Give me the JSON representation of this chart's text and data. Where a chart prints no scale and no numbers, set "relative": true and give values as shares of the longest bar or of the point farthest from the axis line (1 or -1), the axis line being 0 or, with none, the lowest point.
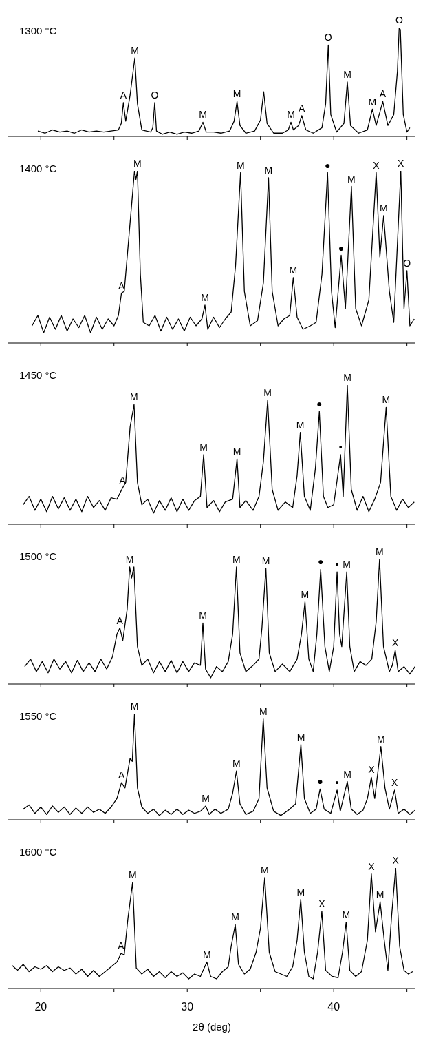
{
  "chart_data": [
    {
      "type": "line",
      "title": "1300 °C",
      "relative": true,
      "color": "#000000",
      "tick_labels": false,
      "xlim": [
        17.78,
        45.58
      ],
      "xticks": [
        20,
        25,
        30,
        35,
        40,
        45
      ],
      "x": [
        19.8,
        20.3,
        20.8,
        21.3,
        21.8,
        22.3,
        22.8,
        23.3,
        23.8,
        24.3,
        24.8,
        25.3,
        25.5,
        25.64,
        25.8,
        26.1,
        26.42,
        26.6,
        26.9,
        27.5,
        27.65,
        27.78,
        27.9,
        28.3,
        28.8,
        29.3,
        29.8,
        30.3,
        30.8,
        31.07,
        31.3,
        31.8,
        32.3,
        32.9,
        33.2,
        33.4,
        33.6,
        34.0,
        34.6,
        35.0,
        35.22,
        35.45,
        35.9,
        36.5,
        36.9,
        37.08,
        37.25,
        37.6,
        37.82,
        38.1,
        38.6,
        39.2,
        39.45,
        39.63,
        39.8,
        40.2,
        40.7,
        40.93,
        41.15,
        41.7,
        42.3,
        42.64,
        42.9,
        43.35,
        43.7,
        44.1,
        44.35,
        44.47,
        44.55,
        44.75,
        45.0,
        45.2
      ],
      "values": [
        0.05,
        0.03,
        0.06,
        0.04,
        0.05,
        0.03,
        0.06,
        0.04,
        0.05,
        0.04,
        0.05,
        0.06,
        0.12,
        0.31,
        0.14,
        0.38,
        0.72,
        0.3,
        0.06,
        0.04,
        0.08,
        0.31,
        0.05,
        0.02,
        0.04,
        0.02,
        0.04,
        0.03,
        0.05,
        0.13,
        0.04,
        0.04,
        0.03,
        0.05,
        0.14,
        0.32,
        0.1,
        0.03,
        0.05,
        0.15,
        0.41,
        0.12,
        0.03,
        0.03,
        0.06,
        0.13,
        0.06,
        0.1,
        0.19,
        0.06,
        0.03,
        0.08,
        0.3,
        0.84,
        0.2,
        0.04,
        0.12,
        0.5,
        0.1,
        0.03,
        0.06,
        0.25,
        0.1,
        0.32,
        0.1,
        0.2,
        0.6,
        1.0,
        0.98,
        0.2,
        0.04,
        0.08
      ],
      "annotations": [
        {
          "text": "A",
          "x": 25.64,
          "y": 0.31
        },
        {
          "text": "M",
          "x": 26.42,
          "y": 0.72
        },
        {
          "text": "O",
          "x": 27.78,
          "y": 0.31
        },
        {
          "text": "M",
          "x": 31.07,
          "y": 0.13
        },
        {
          "text": "M",
          "x": 33.4,
          "y": 0.32
        },
        {
          "text": "M",
          "x": 37.08,
          "y": 0.13
        },
        {
          "text": "A",
          "x": 37.82,
          "y": 0.19
        },
        {
          "text": "O",
          "x": 39.63,
          "y": 0.84
        },
        {
          "text": "M",
          "x": 40.93,
          "y": 0.5
        },
        {
          "text": "M",
          "x": 42.64,
          "y": 0.25
        },
        {
          "text": "A",
          "x": 43.35,
          "y": 0.32
        },
        {
          "text": "O",
          "x": 44.47,
          "y": 1.0
        }
      ]
    },
    {
      "type": "line",
      "title": "1400 °C",
      "relative": true,
      "color": "#000000",
      "tick_labels": false,
      "xlim": [
        17.78,
        45.58
      ],
      "xticks": [
        20,
        25,
        30,
        35,
        40,
        45
      ],
      "x": [
        19.4,
        19.8,
        20.2,
        20.6,
        21.0,
        21.4,
        21.8,
        22.2,
        22.6,
        23.0,
        23.4,
        23.8,
        24.2,
        24.6,
        25.0,
        25.3,
        25.51,
        25.7,
        26.0,
        26.4,
        26.5,
        26.6,
        26.8,
        27.0,
        27.4,
        27.8,
        28.2,
        28.6,
        29.0,
        29.4,
        29.8,
        30.2,
        30.6,
        31.0,
        31.21,
        31.4,
        31.8,
        32.2,
        32.6,
        33.0,
        33.3,
        33.64,
        33.9,
        34.3,
        34.8,
        35.2,
        35.55,
        35.8,
        36.2,
        36.6,
        37.0,
        37.24,
        37.5,
        37.9,
        38.4,
        38.8,
        39.2,
        39.58,
        39.85,
        40.1,
        40.51,
        40.8,
        41.21,
        41.5,
        41.9,
        42.4,
        42.9,
        43.15,
        43.41,
        43.8,
        44.1,
        44.58,
        44.8,
        45.0,
        45.2,
        45.5
      ],
      "values": [
        0.1,
        0.16,
        0.06,
        0.15,
        0.08,
        0.16,
        0.07,
        0.14,
        0.09,
        0.16,
        0.06,
        0.15,
        0.08,
        0.14,
        0.1,
        0.16,
        0.29,
        0.3,
        0.6,
        1.0,
        0.95,
        1.0,
        0.4,
        0.12,
        0.1,
        0.16,
        0.07,
        0.15,
        0.08,
        0.14,
        0.07,
        0.15,
        0.1,
        0.14,
        0.22,
        0.08,
        0.15,
        0.09,
        0.14,
        0.18,
        0.45,
        0.99,
        0.3,
        0.1,
        0.13,
        0.35,
        0.96,
        0.3,
        0.1,
        0.14,
        0.16,
        0.38,
        0.15,
        0.08,
        0.1,
        0.12,
        0.4,
        0.99,
        0.3,
        0.09,
        0.51,
        0.2,
        0.91,
        0.2,
        0.1,
        0.25,
        0.99,
        0.5,
        0.74,
        0.3,
        0.12,
        1.0,
        0.2,
        0.42,
        0.1,
        0.14
      ],
      "annotations": [
        {
          "text": "A",
          "x": 25.51,
          "y": 0.29
        },
        {
          "text": "M",
          "x": 26.6,
          "y": 1.0
        },
        {
          "text": "M",
          "x": 31.21,
          "y": 0.22
        },
        {
          "text": "M",
          "x": 33.64,
          "y": 0.99
        },
        {
          "text": "M",
          "x": 35.55,
          "y": 0.96
        },
        {
          "text": "M",
          "x": 37.24,
          "y": 0.38
        },
        {
          "text": "●",
          "x": 39.58,
          "y": 0.99
        },
        {
          "text": "●",
          "x": 40.51,
          "y": 0.51
        },
        {
          "text": "M",
          "x": 41.21,
          "y": 0.91
        },
        {
          "text": "X",
          "x": 42.9,
          "y": 0.99
        },
        {
          "text": "M",
          "x": 43.41,
          "y": 0.74
        },
        {
          "text": "X",
          "x": 44.58,
          "y": 1.0
        },
        {
          "text": "O",
          "x": 45.0,
          "y": 0.42
        }
      ]
    },
    {
      "type": "line",
      "title": "1450 °C",
      "relative": true,
      "color": "#000000",
      "tick_labels": false,
      "xlim": [
        17.78,
        45.58
      ],
      "xticks": [
        20,
        25,
        30,
        35,
        40,
        45
      ],
      "x": [
        18.8,
        19.2,
        19.6,
        20.0,
        20.4,
        20.8,
        21.2,
        21.6,
        22.0,
        22.4,
        22.8,
        23.2,
        23.6,
        24.0,
        24.4,
        24.8,
        25.2,
        25.58,
        25.8,
        26.1,
        26.37,
        26.6,
        26.9,
        27.3,
        27.7,
        28.1,
        28.5,
        28.9,
        29.3,
        29.7,
        30.1,
        30.5,
        30.9,
        31.12,
        31.35,
        31.8,
        32.2,
        32.6,
        33.1,
        33.4,
        33.6,
        34.0,
        34.5,
        34.9,
        35.2,
        35.49,
        35.8,
        36.2,
        36.7,
        37.2,
        37.5,
        37.72,
        38.0,
        38.4,
        38.75,
        39.02,
        39.3,
        39.6,
        40.0,
        40.47,
        40.65,
        40.93,
        41.2,
        41.6,
        42.0,
        42.4,
        42.8,
        43.2,
        43.58,
        43.9,
        44.3,
        44.7,
        45.1,
        45.5
      ],
      "values": [
        0.14,
        0.2,
        0.1,
        0.18,
        0.09,
        0.2,
        0.11,
        0.19,
        0.1,
        0.18,
        0.09,
        0.2,
        0.12,
        0.17,
        0.1,
        0.19,
        0.18,
        0.26,
        0.3,
        0.7,
        0.86,
        0.3,
        0.14,
        0.18,
        0.08,
        0.17,
        0.1,
        0.19,
        0.09,
        0.18,
        0.1,
        0.17,
        0.2,
        0.5,
        0.12,
        0.17,
        0.09,
        0.16,
        0.18,
        0.47,
        0.12,
        0.17,
        0.1,
        0.2,
        0.45,
        0.89,
        0.25,
        0.1,
        0.16,
        0.12,
        0.35,
        0.66,
        0.2,
        0.1,
        0.4,
        0.81,
        0.2,
        0.12,
        0.14,
        0.5,
        0.2,
        1.0,
        0.25,
        0.1,
        0.2,
        0.09,
        0.18,
        0.3,
        0.84,
        0.2,
        0.1,
        0.18,
        0.12,
        0.16
      ],
      "annotations": [
        {
          "text": "A",
          "x": 25.58,
          "y": 0.26
        },
        {
          "text": "M",
          "x": 26.37,
          "y": 0.86
        },
        {
          "text": "M",
          "x": 31.12,
          "y": 0.5
        },
        {
          "text": "M",
          "x": 33.4,
          "y": 0.47
        },
        {
          "text": "M",
          "x": 35.49,
          "y": 0.89
        },
        {
          "text": "M",
          "x": 37.72,
          "y": 0.66
        },
        {
          "text": "●",
          "x": 39.02,
          "y": 0.81
        },
        {
          "text": "•",
          "x": 40.47,
          "y": 0.5
        },
        {
          "text": "M",
          "x": 40.93,
          "y": 1.0
        },
        {
          "text": "M",
          "x": 43.58,
          "y": 0.84
        }
      ]
    },
    {
      "type": "line",
      "title": "1500 °C",
      "relative": true,
      "color": "#000000",
      "tick_labels": false,
      "xlim": [
        17.78,
        45.58
      ],
      "xticks": [
        20,
        25,
        30,
        35,
        40,
        45
      ],
      "x": [
        18.9,
        19.3,
        19.7,
        20.1,
        20.5,
        20.9,
        21.3,
        21.7,
        22.1,
        22.5,
        22.9,
        23.3,
        23.7,
        24.1,
        24.5,
        24.9,
        25.2,
        25.4,
        25.6,
        25.9,
        26.07,
        26.2,
        26.36,
        26.6,
        26.9,
        27.3,
        27.7,
        28.1,
        28.5,
        28.9,
        29.3,
        29.7,
        30.1,
        30.5,
        30.9,
        31.07,
        31.25,
        31.6,
        32.0,
        32.4,
        32.8,
        33.1,
        33.36,
        33.6,
        34.0,
        34.5,
        34.9,
        35.1,
        35.37,
        35.6,
        36.0,
        36.5,
        37.0,
        37.5,
        37.8,
        38.04,
        38.3,
        38.6,
        38.85,
        39.11,
        39.4,
        39.7,
        40.0,
        40.23,
        40.4,
        40.55,
        40.89,
        41.1,
        41.4,
        41.8,
        42.2,
        42.6,
        42.9,
        43.13,
        43.4,
        43.8,
        44.0,
        44.2,
        44.4,
        44.8,
        45.2,
        45.55
      ],
      "values": [
        0.14,
        0.2,
        0.1,
        0.18,
        0.09,
        0.2,
        0.12,
        0.18,
        0.09,
        0.19,
        0.1,
        0.17,
        0.1,
        0.2,
        0.12,
        0.22,
        0.4,
        0.45,
        0.35,
        0.6,
        0.94,
        0.85,
        0.94,
        0.3,
        0.15,
        0.2,
        0.09,
        0.18,
        0.1,
        0.19,
        0.09,
        0.18,
        0.1,
        0.17,
        0.15,
        0.49,
        0.12,
        0.05,
        0.14,
        0.1,
        0.18,
        0.4,
        0.94,
        0.25,
        0.1,
        0.15,
        0.2,
        0.45,
        0.93,
        0.25,
        0.1,
        0.16,
        0.1,
        0.2,
        0.4,
        0.66,
        0.2,
        0.1,
        0.4,
        0.92,
        0.3,
        0.1,
        0.3,
        0.9,
        0.4,
        0.3,
        0.9,
        0.3,
        0.1,
        0.18,
        0.15,
        0.2,
        0.5,
        1.0,
        0.3,
        0.1,
        0.15,
        0.27,
        0.1,
        0.14,
        0.08,
        0.14
      ],
      "annotations": [
        {
          "text": "A",
          "x": 25.4,
          "y": 0.45
        },
        {
          "text": "M",
          "x": 26.07,
          "y": 0.94
        },
        {
          "text": "M",
          "x": 31.07,
          "y": 0.49
        },
        {
          "text": "M",
          "x": 33.36,
          "y": 0.94
        },
        {
          "text": "M",
          "x": 35.37,
          "y": 0.93
        },
        {
          "text": "M",
          "x": 38.04,
          "y": 0.66
        },
        {
          "text": "●",
          "x": 39.11,
          "y": 0.92
        },
        {
          "text": "•",
          "x": 40.23,
          "y": 0.9
        },
        {
          "text": "M",
          "x": 40.89,
          "y": 0.9
        },
        {
          "text": "M",
          "x": 43.13,
          "y": 1.0
        },
        {
          "text": "X",
          "x": 44.2,
          "y": 0.27
        }
      ]
    },
    {
      "type": "line",
      "title": "1550 °C",
      "relative": true,
      "color": "#000000",
      "tick_labels": false,
      "xlim": [
        17.78,
        45.58
      ],
      "xticks": [
        20,
        25,
        30,
        35,
        40,
        45
      ],
      "x": [
        18.8,
        19.2,
        19.6,
        20.0,
        20.4,
        20.8,
        21.2,
        21.6,
        22.0,
        22.4,
        22.8,
        23.2,
        23.6,
        24.0,
        24.4,
        24.8,
        25.2,
        25.51,
        25.75,
        26.1,
        26.25,
        26.4,
        26.6,
        26.9,
        27.3,
        27.7,
        28.1,
        28.5,
        28.9,
        29.3,
        29.7,
        30.1,
        30.5,
        30.9,
        31.26,
        31.5,
        31.9,
        32.3,
        32.8,
        33.1,
        33.36,
        33.6,
        34.0,
        34.5,
        34.9,
        35.19,
        35.45,
        35.9,
        36.4,
        36.9,
        37.4,
        37.76,
        38.0,
        38.4,
        38.8,
        39.07,
        39.35,
        39.8,
        40.23,
        40.45,
        40.93,
        41.2,
        41.6,
        42.0,
        42.3,
        42.57,
        42.8,
        43.22,
        43.5,
        43.8,
        44.16,
        44.4,
        44.8,
        45.2,
        45.55
      ],
      "values": [
        0.1,
        0.14,
        0.06,
        0.12,
        0.05,
        0.13,
        0.07,
        0.12,
        0.05,
        0.11,
        0.06,
        0.12,
        0.07,
        0.1,
        0.06,
        0.12,
        0.2,
        0.35,
        0.3,
        0.58,
        0.55,
        1.0,
        0.3,
        0.12,
        0.06,
        0.1,
        0.04,
        0.09,
        0.05,
        0.1,
        0.05,
        0.09,
        0.06,
        0.08,
        0.13,
        0.05,
        0.1,
        0.06,
        0.1,
        0.25,
        0.46,
        0.15,
        0.05,
        0.08,
        0.2,
        0.95,
        0.3,
        0.08,
        0.04,
        0.09,
        0.15,
        0.71,
        0.2,
        0.06,
        0.1,
        0.29,
        0.1,
        0.06,
        0.28,
        0.08,
        0.36,
        0.1,
        0.05,
        0.09,
        0.2,
        0.4,
        0.2,
        0.69,
        0.3,
        0.1,
        0.28,
        0.06,
        0.1,
        0.05,
        0.09
      ],
      "annotations": [
        {
          "text": "A",
          "x": 25.51,
          "y": 0.35
        },
        {
          "text": "M",
          "x": 26.4,
          "y": 1.0
        },
        {
          "text": "M",
          "x": 31.26,
          "y": 0.13
        },
        {
          "text": "M",
          "x": 33.36,
          "y": 0.46
        },
        {
          "text": "M",
          "x": 35.19,
          "y": 0.95
        },
        {
          "text": "M",
          "x": 37.76,
          "y": 0.71
        },
        {
          "text": "●",
          "x": 39.07,
          "y": 0.29
        },
        {
          "text": "•",
          "x": 40.23,
          "y": 0.28
        },
        {
          "text": "M",
          "x": 40.93,
          "y": 0.36
        },
        {
          "text": "X",
          "x": 42.57,
          "y": 0.4
        },
        {
          "text": "M",
          "x": 43.22,
          "y": 0.69
        },
        {
          "text": "X",
          "x": 44.16,
          "y": 0.28
        }
      ]
    },
    {
      "type": "line",
      "title": "1600 °C",
      "relative": true,
      "color": "#000000",
      "xlabel": "2θ (deg)",
      "xlim": [
        17.78,
        45.58
      ],
      "xticks": [
        20,
        {
          "value": 25,
          "label": null
        },
        30,
        {
          "value": 35,
          "label": null
        },
        40,
        {
          "value": 45,
          "label": null
        }
      ],
      "x": [
        18.07,
        18.4,
        18.8,
        19.2,
        19.6,
        20.0,
        20.4,
        20.8,
        21.2,
        21.6,
        22.0,
        22.4,
        22.8,
        23.2,
        23.6,
        24.0,
        24.4,
        24.8,
        25.2,
        25.48,
        25.7,
        25.95,
        26.27,
        26.52,
        26.9,
        27.3,
        27.7,
        28.1,
        28.5,
        28.9,
        29.3,
        29.7,
        30.1,
        30.5,
        30.9,
        31.34,
        31.6,
        32.0,
        32.4,
        32.8,
        33.0,
        33.28,
        33.5,
        33.9,
        34.3,
        34.7,
        35.0,
        35.29,
        35.6,
        36.0,
        36.4,
        36.8,
        37.2,
        37.5,
        37.75,
        38.0,
        38.3,
        38.6,
        38.9,
        39.19,
        39.45,
        39.9,
        40.3,
        40.6,
        40.85,
        41.1,
        41.5,
        41.9,
        42.3,
        42.57,
        42.85,
        43.17,
        43.45,
        43.7,
        43.95,
        44.23,
        44.5,
        44.8,
        45.1,
        45.39
      ],
      "values": [
        0.19,
        0.15,
        0.2,
        0.14,
        0.18,
        0.16,
        0.19,
        0.14,
        0.18,
        0.15,
        0.17,
        0.12,
        0.16,
        0.1,
        0.15,
        0.1,
        0.14,
        0.18,
        0.22,
        0.29,
        0.28,
        0.58,
        0.88,
        0.17,
        0.12,
        0.16,
        0.1,
        0.14,
        0.09,
        0.14,
        0.1,
        0.13,
        0.08,
        0.12,
        0.1,
        0.22,
        0.1,
        0.08,
        0.14,
        0.18,
        0.35,
        0.53,
        0.2,
        0.12,
        0.16,
        0.3,
        0.5,
        0.92,
        0.3,
        0.14,
        0.12,
        0.1,
        0.18,
        0.4,
        0.74,
        0.3,
        0.1,
        0.08,
        0.3,
        0.64,
        0.15,
        0.1,
        0.09,
        0.3,
        0.55,
        0.15,
        0.1,
        0.14,
        0.4,
        0.95,
        0.47,
        0.72,
        0.4,
        0.15,
        0.6,
        1.0,
        0.35,
        0.15,
        0.12,
        0.14
      ],
      "annotations": [
        {
          "text": "A",
          "x": 25.48,
          "y": 0.29
        },
        {
          "text": "M",
          "x": 26.27,
          "y": 0.88
        },
        {
          "text": "M",
          "x": 31.34,
          "y": 0.22
        },
        {
          "text": "M",
          "x": 33.28,
          "y": 0.53
        },
        {
          "text": "M",
          "x": 35.29,
          "y": 0.92
        },
        {
          "text": "M",
          "x": 37.75,
          "y": 0.74
        },
        {
          "text": "X",
          "x": 39.19,
          "y": 0.64
        },
        {
          "text": "M",
          "x": 40.85,
          "y": 0.55
        },
        {
          "text": "X",
          "x": 42.57,
          "y": 0.95
        },
        {
          "text": "M",
          "x": 43.17,
          "y": 0.72
        },
        {
          "text": "X",
          "x": 44.23,
          "y": 1.0
        }
      ]
    }
  ]
}
